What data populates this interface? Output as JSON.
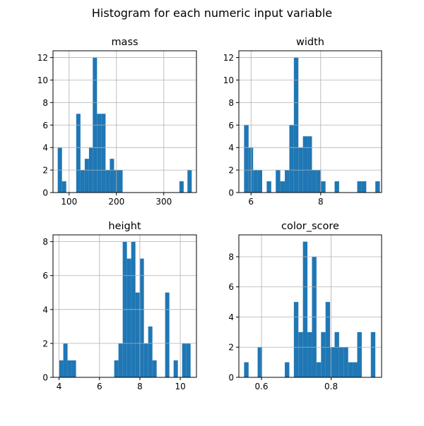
{
  "figure": {
    "title": "Histogram for each numeric input variable"
  },
  "colors": {
    "bar": "#1f77b4",
    "grid": "#b0b0b0",
    "axis": "#000000"
  },
  "chart_data": [
    {
      "type": "bar",
      "title": "mass",
      "grid": true,
      "xlim": [
        66,
        369
      ],
      "ylim": [
        0,
        12.6
      ],
      "xticks": [
        100,
        200,
        300
      ],
      "yticks": [
        0,
        2,
        4,
        6,
        8,
        10,
        12
      ],
      "bins": [
        {
          "x0": 76,
          "x1": 85,
          "count": 4
        },
        {
          "x0": 85,
          "x1": 94,
          "count": 1
        },
        {
          "x0": 115,
          "x1": 124,
          "count": 7
        },
        {
          "x0": 124,
          "x1": 133,
          "count": 2
        },
        {
          "x0": 133,
          "x1": 142,
          "count": 3
        },
        {
          "x0": 142,
          "x1": 150,
          "count": 4
        },
        {
          "x0": 150,
          "x1": 159,
          "count": 12
        },
        {
          "x0": 159,
          "x1": 168,
          "count": 7
        },
        {
          "x0": 168,
          "x1": 177,
          "count": 7
        },
        {
          "x0": 177,
          "x1": 186,
          "count": 2
        },
        {
          "x0": 186,
          "x1": 195,
          "count": 3
        },
        {
          "x0": 195,
          "x1": 204,
          "count": 2
        },
        {
          "x0": 204,
          "x1": 213,
          "count": 2
        },
        {
          "x0": 333,
          "x1": 342,
          "count": 1
        },
        {
          "x0": 350,
          "x1": 359,
          "count": 2
        }
      ]
    },
    {
      "type": "bar",
      "title": "width",
      "grid": true,
      "xlim": [
        5.65,
        9.75
      ],
      "ylim": [
        0,
        12.6
      ],
      "xticks": [
        6,
        8
      ],
      "yticks": [
        0,
        2,
        4,
        6,
        8,
        10,
        12
      ],
      "bins": [
        {
          "x0": 5.8,
          "x1": 5.93,
          "count": 6
        },
        {
          "x0": 5.93,
          "x1": 6.06,
          "count": 4
        },
        {
          "x0": 6.06,
          "x1": 6.19,
          "count": 2
        },
        {
          "x0": 6.19,
          "x1": 6.32,
          "count": 2
        },
        {
          "x0": 6.45,
          "x1": 6.58,
          "count": 1
        },
        {
          "x0": 6.71,
          "x1": 6.84,
          "count": 2
        },
        {
          "x0": 6.84,
          "x1": 6.97,
          "count": 1
        },
        {
          "x0": 6.97,
          "x1": 7.1,
          "count": 2
        },
        {
          "x0": 7.1,
          "x1": 7.23,
          "count": 6
        },
        {
          "x0": 7.23,
          "x1": 7.36,
          "count": 12
        },
        {
          "x0": 7.36,
          "x1": 7.49,
          "count": 4
        },
        {
          "x0": 7.49,
          "x1": 7.62,
          "count": 5
        },
        {
          "x0": 7.62,
          "x1": 7.75,
          "count": 5
        },
        {
          "x0": 7.75,
          "x1": 7.88,
          "count": 2
        },
        {
          "x0": 7.88,
          "x1": 8.01,
          "count": 2
        },
        {
          "x0": 8.01,
          "x1": 8.14,
          "count": 1
        },
        {
          "x0": 8.4,
          "x1": 8.53,
          "count": 1
        },
        {
          "x0": 9.05,
          "x1": 9.18,
          "count": 1
        },
        {
          "x0": 9.18,
          "x1": 9.31,
          "count": 1
        },
        {
          "x0": 9.57,
          "x1": 9.7,
          "count": 1
        }
      ]
    },
    {
      "type": "bar",
      "title": "height",
      "grid": true,
      "xlim": [
        3.7,
        10.8
      ],
      "ylim": [
        0,
        8.4
      ],
      "xticks": [
        4,
        6,
        8,
        10
      ],
      "yticks": [
        0,
        2,
        4,
        6,
        8
      ],
      "bins": [
        {
          "x0": 4.0,
          "x1": 4.21,
          "count": 1
        },
        {
          "x0": 4.21,
          "x1": 4.42,
          "count": 2
        },
        {
          "x0": 4.42,
          "x1": 4.63,
          "count": 1
        },
        {
          "x0": 4.63,
          "x1": 4.84,
          "count": 1
        },
        {
          "x0": 6.73,
          "x1": 6.94,
          "count": 1
        },
        {
          "x0": 6.94,
          "x1": 7.15,
          "count": 2
        },
        {
          "x0": 7.15,
          "x1": 7.36,
          "count": 8
        },
        {
          "x0": 7.36,
          "x1": 7.57,
          "count": 7
        },
        {
          "x0": 7.57,
          "x1": 7.78,
          "count": 8
        },
        {
          "x0": 7.78,
          "x1": 7.99,
          "count": 5
        },
        {
          "x0": 7.99,
          "x1": 8.2,
          "count": 7
        },
        {
          "x0": 8.2,
          "x1": 8.41,
          "count": 2
        },
        {
          "x0": 8.41,
          "x1": 8.62,
          "count": 3
        },
        {
          "x0": 8.62,
          "x1": 8.83,
          "count": 1
        },
        {
          "x0": 9.25,
          "x1": 9.46,
          "count": 5
        },
        {
          "x0": 9.67,
          "x1": 9.88,
          "count": 1
        },
        {
          "x0": 10.09,
          "x1": 10.3,
          "count": 2
        },
        {
          "x0": 10.3,
          "x1": 10.51,
          "count": 2
        }
      ]
    },
    {
      "type": "bar",
      "title": "color_score",
      "grid": true,
      "xlim": [
        0.535,
        0.945
      ],
      "ylim": [
        0,
        9.45
      ],
      "xticks": [
        0.6,
        0.8
      ],
      "yticks": [
        0,
        2,
        4,
        6,
        8
      ],
      "bins": [
        {
          "x0": 0.55,
          "x1": 0.563,
          "count": 1
        },
        {
          "x0": 0.589,
          "x1": 0.602,
          "count": 2
        },
        {
          "x0": 0.667,
          "x1": 0.68,
          "count": 1
        },
        {
          "x0": 0.693,
          "x1": 0.706,
          "count": 5
        },
        {
          "x0": 0.706,
          "x1": 0.719,
          "count": 3
        },
        {
          "x0": 0.719,
          "x1": 0.732,
          "count": 9
        },
        {
          "x0": 0.732,
          "x1": 0.745,
          "count": 3
        },
        {
          "x0": 0.745,
          "x1": 0.758,
          "count": 8
        },
        {
          "x0": 0.758,
          "x1": 0.771,
          "count": 1
        },
        {
          "x0": 0.771,
          "x1": 0.784,
          "count": 3
        },
        {
          "x0": 0.784,
          "x1": 0.797,
          "count": 5
        },
        {
          "x0": 0.797,
          "x1": 0.81,
          "count": 2
        },
        {
          "x0": 0.81,
          "x1": 0.823,
          "count": 3
        },
        {
          "x0": 0.823,
          "x1": 0.836,
          "count": 2
        },
        {
          "x0": 0.836,
          "x1": 0.849,
          "count": 2
        },
        {
          "x0": 0.849,
          "x1": 0.862,
          "count": 1
        },
        {
          "x0": 0.862,
          "x1": 0.875,
          "count": 1
        },
        {
          "x0": 0.875,
          "x1": 0.888,
          "count": 3
        },
        {
          "x0": 0.914,
          "x1": 0.927,
          "count": 3
        }
      ]
    }
  ]
}
